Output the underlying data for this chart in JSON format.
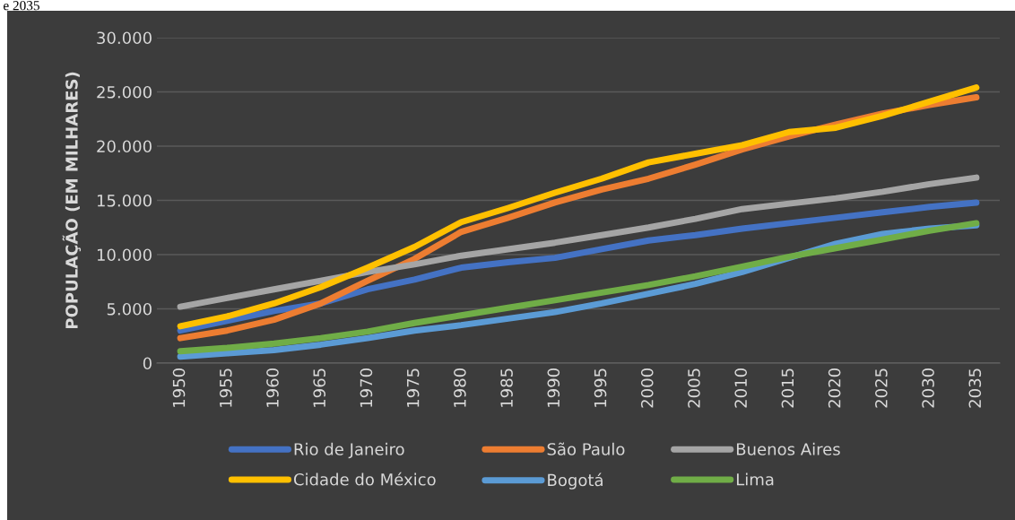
{
  "chart_data": {
    "type": "line",
    "annotations": [
      "e 2035"
    ],
    "ylabel": "POPULAÇÃO (EM MILHARES)",
    "categories": [
      "1950",
      "1955",
      "1960",
      "1965",
      "1970",
      "1975",
      "1980",
      "1985",
      "1990",
      "1995",
      "2000",
      "2005",
      "2010",
      "2015",
      "2020",
      "2025",
      "2030",
      "2035"
    ],
    "ylim": [
      0,
      30000
    ],
    "yticks": [
      0,
      {
        "value": 5000,
        "label": "5.000"
      },
      {
        "value": 10000,
        "label": "10.000"
      },
      {
        "value": 15000,
        "label": "15.000"
      },
      {
        "value": 20000,
        "label": "20.000"
      },
      {
        "value": 25000,
        "label": "25.000"
      },
      {
        "value": 30000,
        "label": "30.000"
      }
    ],
    "grid": "y",
    "legend": "bottom",
    "marker": "none",
    "line_style": "solid",
    "series": [
      {
        "name": "Rio de Janeiro",
        "color": "#4472c4",
        "values": [
          3000,
          3900,
          4800,
          5500,
          6800,
          7700,
          8800,
          9300,
          9700,
          10500,
          11300,
          11800,
          12400,
          12900,
          13400,
          13900,
          14400,
          14800
        ]
      },
      {
        "name": "São Paulo",
        "color": "#ed7d31",
        "values": [
          2300,
          3000,
          4000,
          5500,
          7600,
          9600,
          12100,
          13400,
          14800,
          16000,
          17000,
          18300,
          19700,
          20900,
          22000,
          23000,
          23800,
          24500
        ]
      },
      {
        "name": "Buenos Aires",
        "color": "#a5a5a5",
        "values": [
          5200,
          6000,
          6800,
          7600,
          8400,
          9100,
          9900,
          10500,
          11100,
          11800,
          12500,
          13300,
          14200,
          14700,
          15200,
          15800,
          16500,
          17100
        ]
      },
      {
        "name": "Cidade do México",
        "color": "#ffc000",
        "values": [
          3400,
          4300,
          5500,
          7000,
          8800,
          10700,
          13000,
          14300,
          15700,
          17000,
          18500,
          19300,
          20100,
          21300,
          21700,
          22800,
          24100,
          25400
        ]
      },
      {
        "name": "Bogotá",
        "color": "#5b9bd5",
        "values": [
          600,
          900,
          1200,
          1700,
          2300,
          3000,
          3500,
          4100,
          4700,
          5500,
          6400,
          7300,
          8400,
          9700,
          11000,
          11900,
          12400,
          12700
        ]
      },
      {
        "name": "Lima",
        "color": "#70ad47",
        "values": [
          1100,
          1400,
          1800,
          2300,
          2900,
          3700,
          4400,
          5100,
          5800,
          6500,
          7200,
          8000,
          8900,
          9800,
          10600,
          11400,
          12200,
          12900
        ]
      }
    ]
  }
}
